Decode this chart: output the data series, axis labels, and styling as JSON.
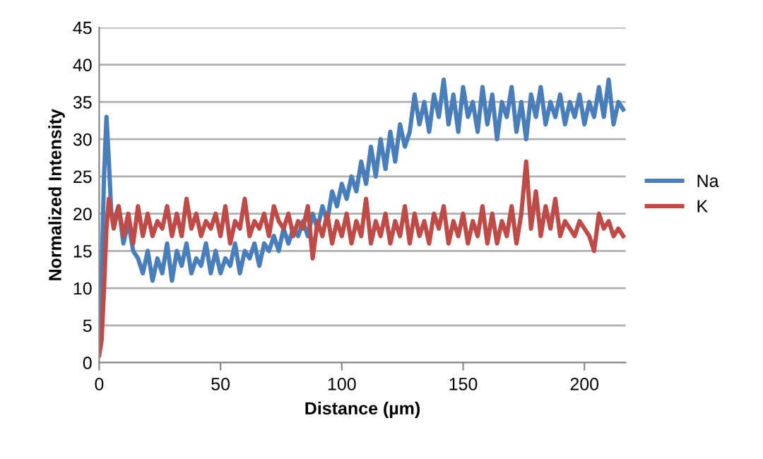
{
  "chart_data": {
    "type": "line",
    "xlabel": "Distance (µm)",
    "ylabel": "Normalized Intensity",
    "x": [
      0,
      1,
      2,
      3,
      4,
      5,
      6,
      8,
      10,
      12,
      14,
      16,
      18,
      20,
      22,
      24,
      26,
      28,
      30,
      32,
      34,
      36,
      38,
      40,
      42,
      44,
      46,
      48,
      50,
      52,
      54,
      56,
      58,
      60,
      62,
      64,
      66,
      68,
      70,
      72,
      74,
      76,
      78,
      80,
      82,
      84,
      86,
      88,
      90,
      92,
      94,
      96,
      98,
      100,
      102,
      104,
      106,
      108,
      110,
      112,
      114,
      116,
      118,
      120,
      122,
      124,
      126,
      128,
      130,
      132,
      134,
      136,
      138,
      140,
      142,
      144,
      146,
      148,
      150,
      152,
      154,
      156,
      158,
      160,
      162,
      164,
      166,
      168,
      170,
      172,
      174,
      176,
      178,
      180,
      182,
      184,
      186,
      188,
      190,
      192,
      194,
      196,
      198,
      200,
      202,
      204,
      206,
      208,
      210,
      212,
      214,
      216
    ],
    "series": [
      {
        "name": "Na",
        "color": "#4a7ebb",
        "values": [
          2,
          12,
          25,
          33,
          27,
          20,
          19,
          21,
          16,
          19,
          15,
          14,
          12,
          15,
          11,
          14,
          12,
          16,
          11,
          15,
          13,
          16,
          12,
          14,
          13,
          16,
          12,
          15,
          12,
          14,
          13,
          16,
          12,
          15,
          14,
          16,
          13,
          16,
          15,
          17,
          15,
          18,
          16,
          18,
          17,
          19,
          17,
          20,
          18,
          21,
          19,
          23,
          21,
          24,
          22,
          25,
          23,
          27,
          24,
          29,
          25,
          30,
          26,
          31,
          27,
          32,
          29,
          31,
          36,
          32,
          35,
          31,
          36,
          33,
          38,
          32,
          36,
          31,
          37,
          33,
          35,
          31,
          37,
          32,
          36,
          30,
          35,
          33,
          37,
          31,
          35,
          30,
          36,
          33,
          37,
          32,
          35,
          33,
          36,
          32,
          35,
          33,
          36,
          32,
          35,
          33,
          37,
          33,
          38,
          32,
          35,
          34
        ]
      },
      {
        "name": "K",
        "color": "#be4b48",
        "values": [
          1,
          3,
          10,
          18,
          22,
          20,
          18,
          21,
          17,
          20,
          16,
          21,
          17,
          20,
          17,
          19,
          18,
          21,
          17,
          20,
          17,
          22,
          18,
          20,
          17,
          19,
          18,
          20,
          17,
          21,
          16,
          19,
          18,
          22,
          17,
          19,
          18,
          20,
          17,
          21,
          19,
          18,
          20,
          17,
          19,
          18,
          21,
          14,
          19,
          17,
          20,
          16,
          19,
          17,
          20,
          16,
          19,
          17,
          22,
          16,
          19,
          17,
          20,
          16,
          19,
          17,
          21,
          16,
          20,
          17,
          19,
          16,
          20,
          18,
          21,
          16,
          19,
          17,
          20,
          16,
          19,
          17,
          21,
          16,
          20,
          16,
          19,
          17,
          21,
          16,
          20,
          27,
          18,
          23,
          17,
          21,
          18,
          22,
          17,
          19,
          18,
          17,
          19,
          18,
          17,
          15,
          20,
          18,
          19,
          17,
          18,
          17
        ]
      }
    ],
    "xlim": [
      0,
      217
    ],
    "xticks": [
      0,
      50,
      100,
      150,
      200
    ],
    "ylim": [
      0,
      45
    ],
    "yticks": [
      0,
      5,
      10,
      15,
      20,
      25,
      30,
      35,
      40,
      45
    ],
    "grid": "y",
    "legend": "right"
  }
}
